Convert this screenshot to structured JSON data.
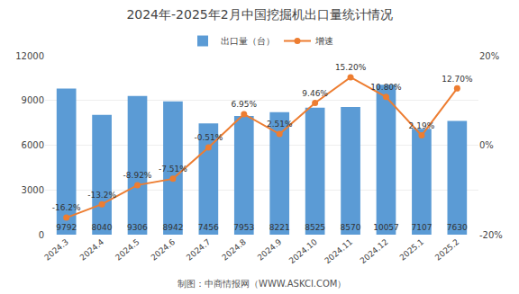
{
  "chart_data": {
    "type": "bar",
    "title": "2024年-2025年2月中国挖掘机出口量统计情况",
    "categories": [
      "2024.3",
      "2024.4",
      "2024.5",
      "2024.6",
      "2024.7",
      "2024.8",
      "2024.9",
      "2024.10",
      "2024.11",
      "2024.12",
      "2025.1",
      "2025.2"
    ],
    "series": [
      {
        "name": "出口量（台）",
        "type": "bar",
        "color": "#5B9BD5",
        "values": [
          9792,
          8040,
          9306,
          8942,
          7456,
          7953,
          8221,
          8525,
          8570,
          10057,
          7107,
          7630
        ],
        "data_labels": true
      },
      {
        "name": "增速",
        "type": "line",
        "axis": "y2",
        "color": "#ED7D31",
        "marker": "circle",
        "values": [
          -16.2,
          -13.2,
          -8.92,
          -7.51,
          -0.51,
          6.95,
          2.51,
          9.46,
          15.2,
          10.8,
          2.19,
          12.7
        ],
        "value_labels": [
          "-16.2%",
          "-13.2%",
          "-8.92%",
          "-7.51%",
          "-0.51%",
          "6.95%",
          "2.51%",
          "9.46%",
          "15.20%",
          "10.80%",
          "2.19%",
          "12.70%"
        ],
        "data_labels": true
      }
    ],
    "ylim": [
      0,
      12000
    ],
    "yticks": [
      0,
      3000,
      6000,
      9000,
      12000
    ],
    "y2lim": [
      -20,
      20
    ],
    "y2ticks": [
      {
        "value": -20,
        "label": "-20%"
      },
      {
        "value": 0,
        "label": "0%"
      },
      {
        "value": 20,
        "label": "20%"
      }
    ],
    "grid": true,
    "legend": "top",
    "annotations": [
      "制图：中商情报网（WWW.ASKCI.COM）"
    ]
  }
}
